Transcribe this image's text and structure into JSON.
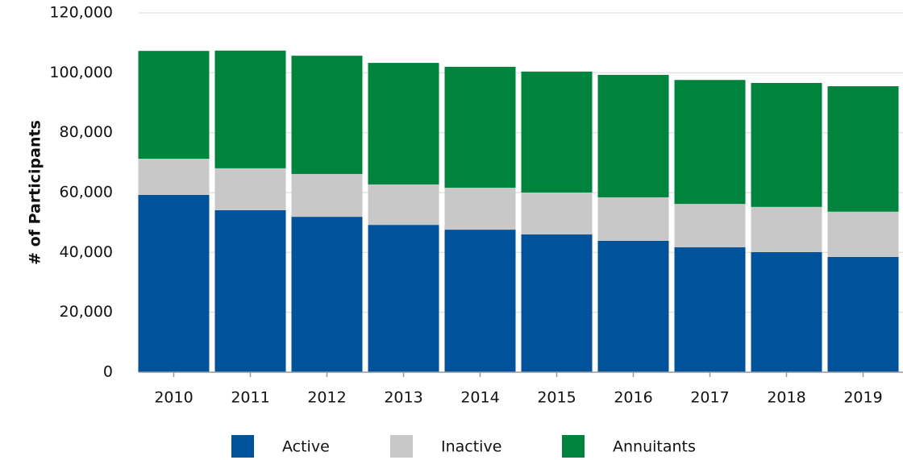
{
  "chart_data": {
    "type": "stacked_bar",
    "y_axis_label": "# of Participants",
    "categories": [
      "2010",
      "2011",
      "2012",
      "2013",
      "2014",
      "2015",
      "2016",
      "2017",
      "2018",
      "2019"
    ],
    "series": [
      {
        "name": "Active",
        "color": "#00539b",
        "values": [
          59200,
          54100,
          51900,
          49200,
          47600,
          46000,
          43900,
          41700,
          40100,
          38500
        ]
      },
      {
        "name": "Inactive",
        "color": "#c8c8c8",
        "values": [
          12100,
          14000,
          14300,
          13500,
          14000,
          14000,
          14500,
          14500,
          15100,
          15100
        ]
      },
      {
        "name": "Annuitants",
        "color": "#00843d",
        "values": [
          36000,
          39300,
          39500,
          40600,
          40400,
          40400,
          40900,
          41400,
          41400,
          41900
        ]
      }
    ],
    "ylim": [
      0,
      120000
    ],
    "yticks": [
      0,
      {
        "value": 20000,
        "label": "20,000"
      },
      {
        "value": 40000,
        "label": "40,000"
      },
      {
        "value": 60000,
        "label": "60,000"
      },
      {
        "value": 80000,
        "label": "80,000"
      },
      {
        "value": 100000,
        "label": "100,000"
      },
      {
        "value": 120000,
        "label": "120,000"
      }
    ],
    "grid": true
  }
}
